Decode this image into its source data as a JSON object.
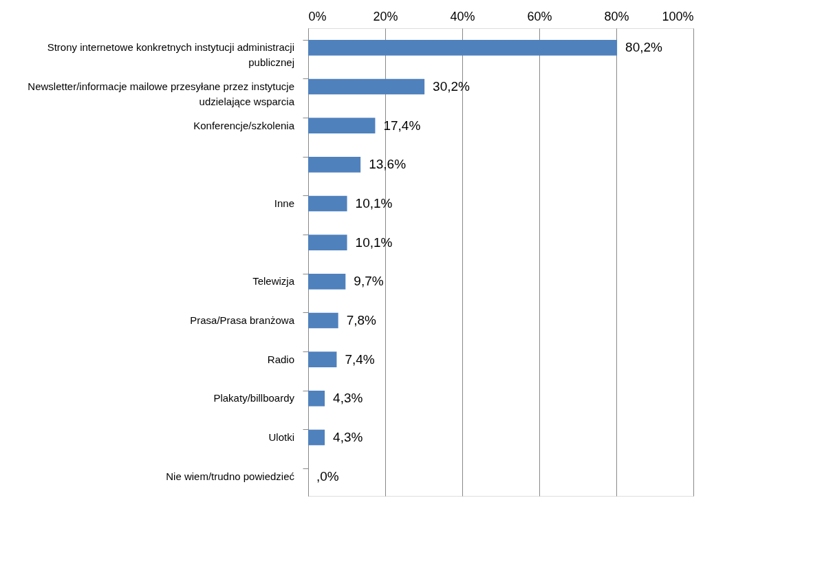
{
  "chart_data": {
    "type": "bar",
    "orientation": "horizontal",
    "categories": [
      "Strony internetowe konkretnych instytucji administracji publicznej",
      "Newsletter/informacje mailowe przesyłane przez instytucje udzielające wsparcia",
      "Konferencje/szkolenia",
      null,
      "Inne",
      null,
      "Telewizja",
      "Prasa/Prasa branżowa",
      "Radio",
      "Plakaty/billboardy",
      "Ulotki",
      "Nie wiem/trudno powiedzieć"
    ],
    "values": [
      80.2,
      30.2,
      17.4,
      13.6,
      10.1,
      10.1,
      9.7,
      7.8,
      7.4,
      4.3,
      4.3,
      0
    ],
    "value_labels": [
      "80,2%",
      "30,2%",
      "17,4%",
      "13,6%",
      "10,1%",
      "10,1%",
      "9,7%",
      "7,8%",
      "7,4%",
      "4,3%",
      "4,3%",
      ",0%"
    ],
    "color": "#4f81bd",
    "xlim": [
      0,
      100
    ],
    "xticks": [
      {
        "value": 0,
        "label": "0%"
      },
      {
        "value": 20,
        "label": "20%"
      },
      {
        "value": 40,
        "label": "40%"
      },
      {
        "value": 60,
        "label": "60%"
      },
      {
        "value": 80,
        "label": "80%"
      },
      {
        "value": 100,
        "label": "100%"
      }
    ],
    "grid": "x"
  }
}
